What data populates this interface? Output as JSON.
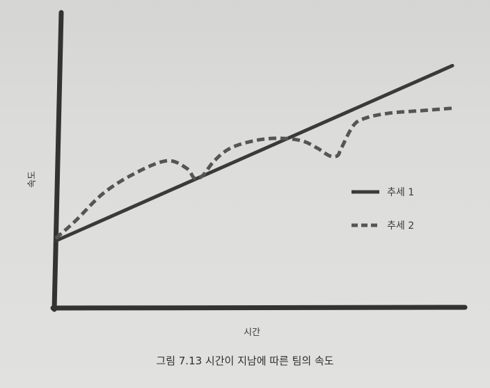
{
  "caption": "그림 7.13 시간이 지남에 따른 팀의 속도",
  "chart_data": {
    "type": "line",
    "title": "",
    "xlabel": "시간",
    "ylabel": "속도",
    "xlim": [
      0,
      100
    ],
    "ylim": [
      0,
      100
    ],
    "grid": false,
    "legend_position": "right",
    "series": [
      {
        "name": "추세 1",
        "style": "solid",
        "color": "#3a3a3a",
        "x": [
          0,
          100
        ],
        "y": [
          26,
          96
        ]
      },
      {
        "name": "추세 2",
        "style": "dashed",
        "color": "#555555",
        "x": [
          0,
          5,
          12,
          20,
          28,
          33,
          35,
          37,
          40,
          44,
          50,
          56,
          62,
          66,
          69,
          71,
          72,
          75,
          78,
          84,
          92,
          100
        ],
        "y": [
          27,
          34,
          45,
          53,
          58,
          55,
          51,
          52,
          58,
          63,
          66,
          67,
          66,
          63,
          60,
          60,
          63,
          72,
          75,
          77,
          78,
          79
        ]
      }
    ]
  }
}
